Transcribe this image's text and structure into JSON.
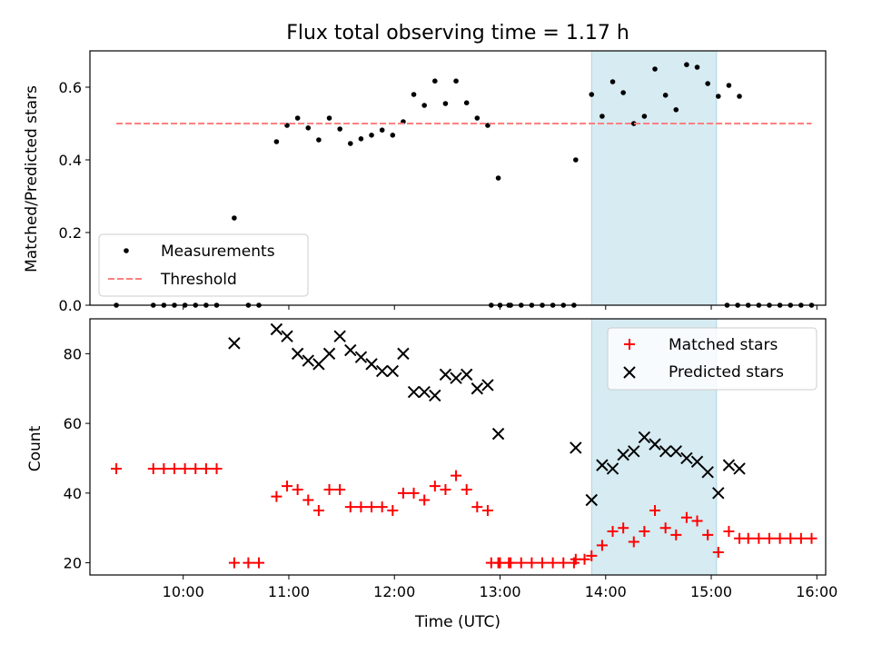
{
  "chart_data": [
    {
      "type": "scatter",
      "title": "Flux total observing time = 1.17 h",
      "ylabel": "Matched/Predicted stars",
      "xlabel": "",
      "xlim": [
        "09:07",
        "16:05"
      ],
      "ylim": [
        0,
        0.7
      ],
      "yticks": [
        "0.0",
        "0.2",
        "0.4",
        "0.6"
      ],
      "legend_position": "lower-left",
      "shaded_interval": [
        "13:52",
        "15:03"
      ],
      "series": [
        {
          "name": "Measurements",
          "marker": "dot",
          "color": "#000000",
          "points": [
            [
              "09:22",
              0
            ],
            [
              "09:43",
              0
            ],
            [
              "09:49",
              0
            ],
            [
              "09:55",
              0
            ],
            [
              "10:01",
              0
            ],
            [
              "10:07",
              0
            ],
            [
              "10:13",
              0
            ],
            [
              "10:19",
              0
            ],
            [
              "10:29",
              0.24
            ],
            [
              "10:37",
              0
            ],
            [
              "10:43",
              0
            ],
            [
              "10:53",
              0.45
            ],
            [
              "10:59",
              0.495
            ],
            [
              "11:05",
              0.515
            ],
            [
              "11:11",
              0.488
            ],
            [
              "11:17",
              0.455
            ],
            [
              "11:23",
              0.515
            ],
            [
              "11:29",
              0.485
            ],
            [
              "11:35",
              0.445
            ],
            [
              "11:41",
              0.458
            ],
            [
              "11:47",
              0.468
            ],
            [
              "11:53",
              0.482
            ],
            [
              "11:59",
              0.468
            ],
            [
              "12:05",
              0.505
            ],
            [
              "12:11",
              0.58
            ],
            [
              "12:17",
              0.55
            ],
            [
              "12:23",
              0.617
            ],
            [
              "12:29",
              0.555
            ],
            [
              "12:35",
              0.617
            ],
            [
              "12:41",
              0.557
            ],
            [
              "12:47",
              0.515
            ],
            [
              "12:53",
              0.495
            ],
            [
              "12:59",
              0.35
            ],
            [
              "13:05",
              0
            ],
            [
              "12:55",
              0
            ],
            [
              "13:00",
              0
            ],
            [
              "13:06",
              0
            ],
            [
              "13:12",
              0
            ],
            [
              "13:18",
              0
            ],
            [
              "13:24",
              0
            ],
            [
              "13:30",
              0
            ],
            [
              "13:36",
              0
            ],
            [
              "13:42",
              0
            ],
            [
              "13:43",
              0.4
            ],
            [
              "13:52",
              0.58
            ],
            [
              "13:58",
              0.52
            ],
            [
              "14:04",
              0.615
            ],
            [
              "14:10",
              0.585
            ],
            [
              "14:16",
              0.5
            ],
            [
              "14:22",
              0.52
            ],
            [
              "14:28",
              0.65
            ],
            [
              "14:34",
              0.578
            ],
            [
              "14:40",
              0.538
            ],
            [
              "14:46",
              0.662
            ],
            [
              "14:52",
              0.655
            ],
            [
              "14:58",
              0.61
            ],
            [
              "15:04",
              0.575
            ],
            [
              "15:10",
              0.605
            ],
            [
              "15:16",
              0.575
            ],
            [
              "15:09",
              0
            ],
            [
              "15:15",
              0
            ],
            [
              "15:21",
              0
            ],
            [
              "15:27",
              0
            ],
            [
              "15:33",
              0
            ],
            [
              "15:39",
              0
            ],
            [
              "15:45",
              0
            ],
            [
              "15:51",
              0
            ],
            [
              "15:57",
              0
            ]
          ]
        },
        {
          "name": "Threshold",
          "marker": "dashed-line",
          "color": "#ff7f7f",
          "points": [
            [
              "09:22",
              0.5
            ],
            [
              "15:57",
              0.5
            ]
          ]
        }
      ]
    },
    {
      "type": "scatter",
      "title": "",
      "ylabel": "Count",
      "xlabel": "Time (UTC)",
      "xlim": [
        "09:07",
        "16:05"
      ],
      "ylim": [
        16.5,
        90
      ],
      "yticks": [
        "20",
        "40",
        "60",
        "80"
      ],
      "xticks": [
        "10:00",
        "11:00",
        "12:00",
        "13:00",
        "14:00",
        "15:00",
        "16:00"
      ],
      "legend_position": "top-right",
      "shaded_interval": [
        "13:52",
        "15:03"
      ],
      "series": [
        {
          "name": "Matched stars",
          "marker": "plus",
          "color": "#ff0000",
          "points": [
            [
              "09:22",
              47
            ],
            [
              "09:43",
              47
            ],
            [
              "09:49",
              47
            ],
            [
              "09:55",
              47
            ],
            [
              "10:01",
              47
            ],
            [
              "10:07",
              47
            ],
            [
              "10:13",
              47
            ],
            [
              "10:19",
              47
            ],
            [
              "10:29",
              20
            ],
            [
              "10:37",
              20
            ],
            [
              "10:43",
              20
            ],
            [
              "10:53",
              39
            ],
            [
              "10:59",
              42
            ],
            [
              "11:05",
              41
            ],
            [
              "11:11",
              38
            ],
            [
              "11:17",
              35
            ],
            [
              "11:23",
              41
            ],
            [
              "11:29",
              41
            ],
            [
              "11:35",
              36
            ],
            [
              "11:41",
              36
            ],
            [
              "11:47",
              36
            ],
            [
              "11:53",
              36
            ],
            [
              "11:59",
              35
            ],
            [
              "12:05",
              40
            ],
            [
              "12:11",
              40
            ],
            [
              "12:17",
              38
            ],
            [
              "12:23",
              42
            ],
            [
              "12:29",
              41
            ],
            [
              "12:35",
              45
            ],
            [
              "12:41",
              41
            ],
            [
              "12:47",
              36
            ],
            [
              "12:53",
              35
            ],
            [
              "12:59",
              20
            ],
            [
              "13:05",
              20
            ],
            [
              "12:55",
              20
            ],
            [
              "13:00",
              20
            ],
            [
              "13:06",
              20
            ],
            [
              "13:12",
              20
            ],
            [
              "13:18",
              20
            ],
            [
              "13:24",
              20
            ],
            [
              "13:30",
              20
            ],
            [
              "13:36",
              20
            ],
            [
              "13:42",
              20
            ],
            [
              "13:43",
              21
            ],
            [
              "13:48",
              21
            ],
            [
              "13:52",
              22
            ],
            [
              "13:58",
              25
            ],
            [
              "14:04",
              29
            ],
            [
              "14:10",
              30
            ],
            [
              "14:16",
              26
            ],
            [
              "14:22",
              29
            ],
            [
              "14:28",
              35
            ],
            [
              "14:34",
              30
            ],
            [
              "14:40",
              28
            ],
            [
              "14:46",
              33
            ],
            [
              "14:52",
              32
            ],
            [
              "14:58",
              28
            ],
            [
              "15:04",
              23
            ],
            [
              "15:10",
              29
            ],
            [
              "15:16",
              27
            ],
            [
              "15:21",
              27
            ],
            [
              "15:27",
              27
            ],
            [
              "15:33",
              27
            ],
            [
              "15:39",
              27
            ],
            [
              "15:45",
              27
            ],
            [
              "15:51",
              27
            ],
            [
              "15:57",
              27
            ]
          ]
        },
        {
          "name": "Predicted stars",
          "marker": "x",
          "color": "#000000",
          "points": [
            [
              "10:29",
              83
            ],
            [
              "10:53",
              87
            ],
            [
              "10:59",
              85
            ],
            [
              "11:05",
              80
            ],
            [
              "11:11",
              78
            ],
            [
              "11:17",
              77
            ],
            [
              "11:23",
              80
            ],
            [
              "11:29",
              85
            ],
            [
              "11:35",
              81
            ],
            [
              "11:41",
              79
            ],
            [
              "11:47",
              77
            ],
            [
              "11:53",
              75
            ],
            [
              "11:59",
              75
            ],
            [
              "12:05",
              80
            ],
            [
              "12:11",
              69
            ],
            [
              "12:17",
              69
            ],
            [
              "12:23",
              68
            ],
            [
              "12:29",
              74
            ],
            [
              "12:35",
              73
            ],
            [
              "12:41",
              74
            ],
            [
              "12:47",
              70
            ],
            [
              "12:53",
              71
            ],
            [
              "12:59",
              57
            ],
            [
              "13:43",
              53
            ],
            [
              "13:52",
              38
            ],
            [
              "13:58",
              48
            ],
            [
              "14:04",
              47
            ],
            [
              "14:10",
              51
            ],
            [
              "14:16",
              52
            ],
            [
              "14:22",
              56
            ],
            [
              "14:28",
              54
            ],
            [
              "14:34",
              52
            ],
            [
              "14:40",
              52
            ],
            [
              "14:46",
              50
            ],
            [
              "14:52",
              49
            ],
            [
              "14:58",
              46
            ],
            [
              "15:04",
              40
            ],
            [
              "15:10",
              48
            ],
            [
              "15:16",
              47
            ]
          ]
        }
      ]
    }
  ]
}
